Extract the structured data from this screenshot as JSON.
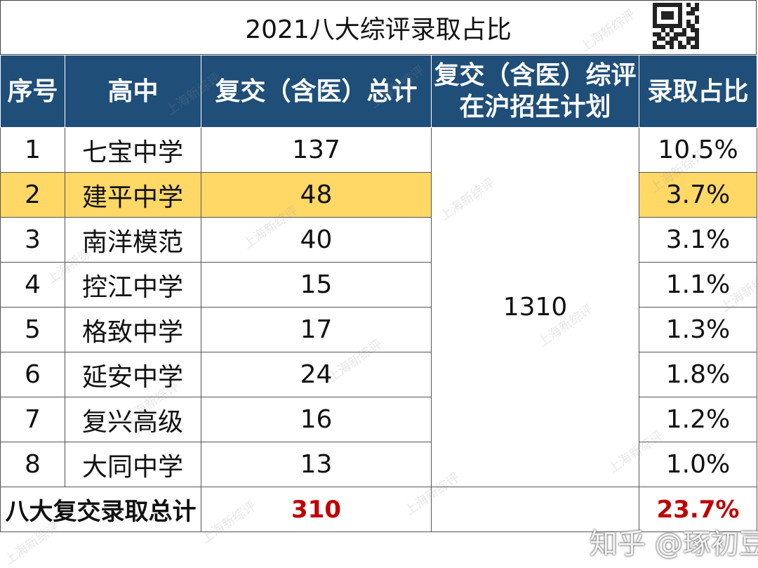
{
  "title": "2021八大综评录取占比",
  "headers": {
    "num": "序号",
    "school": "高中",
    "admit_total": "复交（含医）总计",
    "plan_line1": "复交（含医）综评",
    "plan_line2": "在沪招生计划",
    "ratio": "录取占比"
  },
  "rows": [
    {
      "num": "1",
      "school": "七宝中学",
      "admit": "137",
      "ratio": "10.5%"
    },
    {
      "num": "2",
      "school": "建平中学",
      "admit": "48",
      "ratio": "3.7%"
    },
    {
      "num": "3",
      "school": "南洋模范",
      "admit": "40",
      "ratio": "3.1%"
    },
    {
      "num": "4",
      "school": "控江中学",
      "admit": "15",
      "ratio": "1.1%"
    },
    {
      "num": "5",
      "school": "格致中学",
      "admit": "17",
      "ratio": "1.3%"
    },
    {
      "num": "6",
      "school": "延安中学",
      "admit": "24",
      "ratio": "1.8%"
    },
    {
      "num": "7",
      "school": "复兴高级",
      "admit": "16",
      "ratio": "1.2%"
    },
    {
      "num": "8",
      "school": "大同中学",
      "admit": "13",
      "ratio": "1.0%"
    }
  ],
  "plan_value": "1310",
  "total": {
    "label": "八大复交录取总计",
    "admit": "310",
    "ratio": "23.7%"
  },
  "watermark": "上海新综评",
  "zhihu_mark": "知乎 @琢初豆妈",
  "colors": {
    "header_bg": "#1f4e79",
    "highlight": "#ffd866",
    "total_red": "#c00000"
  }
}
